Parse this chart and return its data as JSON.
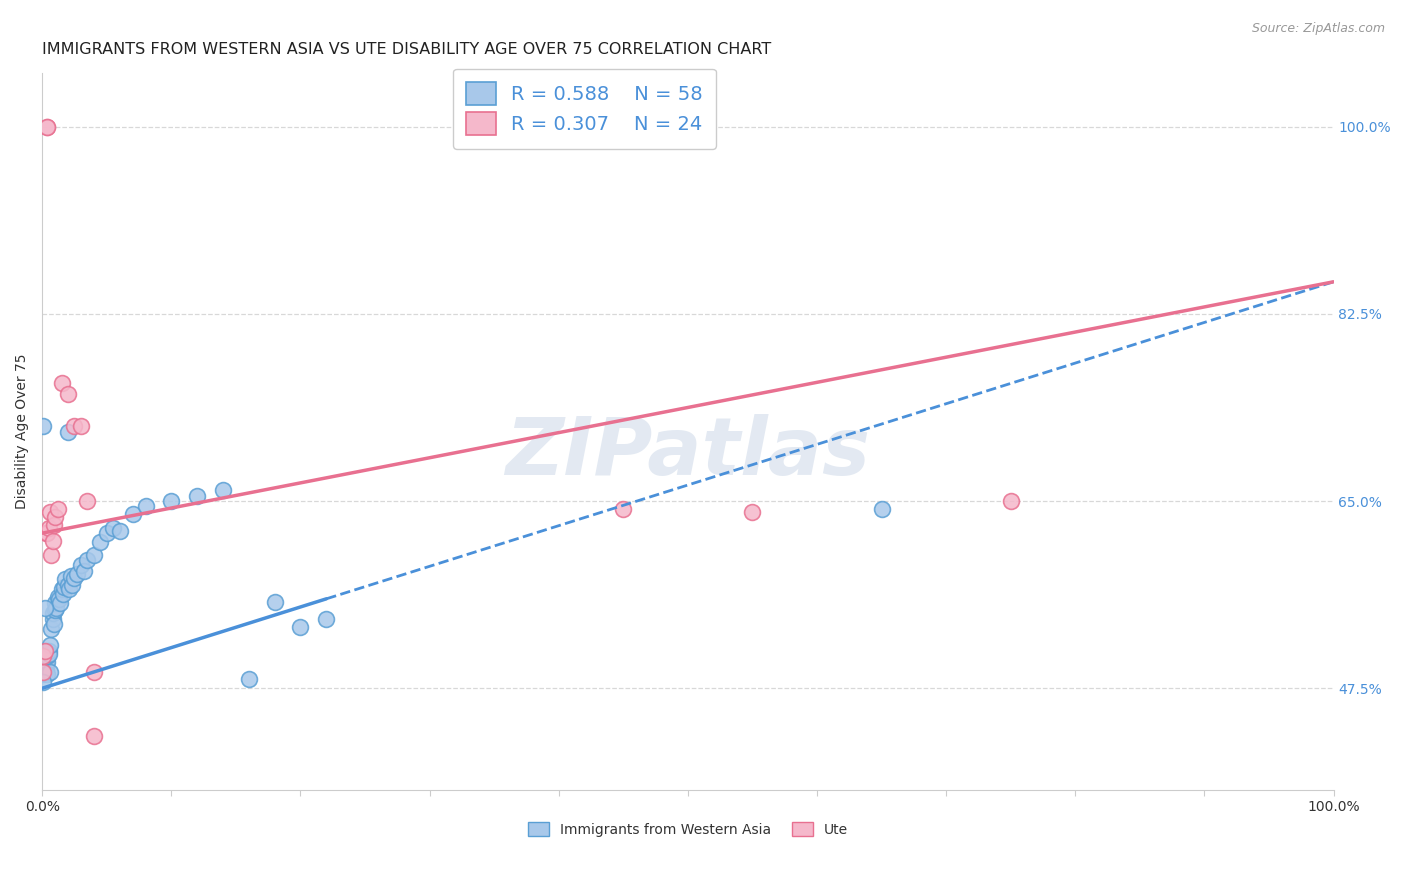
{
  "title": "IMMIGRANTS FROM WESTERN ASIA VS UTE DISABILITY AGE OVER 75 CORRELATION CHART",
  "source": "Source: ZipAtlas.com",
  "ylabel_left": "Disability Age Over 75",
  "xlabel_labels": [
    "Immigrants from Western Asia",
    "Ute"
  ],
  "watermark": "ZIPatlas",
  "blue_R": 0.588,
  "blue_N": 58,
  "pink_R": 0.307,
  "pink_N": 24,
  "blue_fill": "#a8c8ea",
  "pink_fill": "#f5b8cb",
  "blue_edge": "#5a9fd4",
  "pink_edge": "#e87090",
  "blue_line": "#4a90d9",
  "pink_line": "#e87090",
  "blue_scatter_x": [
    0.001,
    0.001,
    0.001,
    0.001,
    0.002,
    0.002,
    0.002,
    0.003,
    0.003,
    0.004,
    0.004,
    0.004,
    0.005,
    0.005,
    0.006,
    0.006,
    0.007,
    0.008,
    0.008,
    0.009,
    0.01,
    0.01,
    0.011,
    0.012,
    0.013,
    0.014,
    0.015,
    0.016,
    0.017,
    0.018,
    0.02,
    0.021,
    0.022,
    0.023,
    0.025,
    0.027,
    0.03,
    0.032,
    0.035,
    0.04,
    0.045,
    0.05,
    0.055,
    0.06,
    0.07,
    0.08,
    0.1,
    0.12,
    0.14,
    0.16,
    0.18,
    0.2,
    0.22,
    0.02,
    0.65,
    0.001,
    0.002,
    0.001
  ],
  "blue_scatter_y": [
    0.49,
    0.495,
    0.5,
    0.488,
    0.492,
    0.496,
    0.49,
    0.493,
    0.5,
    0.5,
    0.505,
    0.488,
    0.51,
    0.507,
    0.515,
    0.49,
    0.53,
    0.54,
    0.545,
    0.535,
    0.548,
    0.555,
    0.55,
    0.56,
    0.558,
    0.555,
    0.568,
    0.563,
    0.57,
    0.577,
    0.572,
    0.568,
    0.58,
    0.572,
    0.578,
    0.582,
    0.59,
    0.585,
    0.595,
    0.6,
    0.612,
    0.62,
    0.625,
    0.622,
    0.638,
    0.645,
    0.65,
    0.655,
    0.66,
    0.484,
    0.556,
    0.532,
    0.54,
    0.715,
    0.643,
    0.72,
    0.55,
    0.481
  ],
  "pink_scatter_x": [
    0.001,
    0.001,
    0.002,
    0.003,
    0.004,
    0.005,
    0.006,
    0.007,
    0.008,
    0.009,
    0.01,
    0.012,
    0.015,
    0.02,
    0.025,
    0.03,
    0.035,
    0.04,
    0.04,
    0.004,
    0.004,
    0.45,
    0.55,
    0.75
  ],
  "pink_scatter_y": [
    0.49,
    0.505,
    0.51,
    0.62,
    0.62,
    0.625,
    0.64,
    0.6,
    0.613,
    0.628,
    0.635,
    0.643,
    0.76,
    0.75,
    0.72,
    0.72,
    0.65,
    0.49,
    0.43,
    1.0,
    1.0,
    0.643,
    0.64,
    0.65
  ],
  "blue_line_x0": 0.0,
  "blue_line_y0": 0.475,
  "blue_line_x1": 0.22,
  "blue_line_y1": 0.6,
  "blue_line_xmax": 1.0,
  "blue_line_ymax": 0.855,
  "pink_line_x0": 0.0,
  "pink_line_y0": 0.62,
  "pink_line_xmax": 1.0,
  "pink_line_ymax": 0.855,
  "x_min": 0.0,
  "x_max": 1.0,
  "y_min": 0.38,
  "y_max": 1.05,
  "yticks": [
    0.475,
    0.65,
    0.825,
    1.0
  ],
  "ytick_labels": [
    "47.5%",
    "65.0%",
    "82.5%",
    "100.0%"
  ],
  "xtick_positions": [
    0.0,
    0.1,
    0.2,
    0.3,
    0.4,
    0.5,
    0.6,
    0.7,
    0.8,
    0.9,
    1.0
  ],
  "xtick_labels_shown": [
    "0.0%",
    "",
    "",
    "",
    "",
    "",
    "",
    "",
    "",
    "",
    "100.0%"
  ],
  "background_color": "#ffffff",
  "grid_color": "#d8d8d8",
  "title_fontsize": 11.5,
  "axis_label_fontsize": 10,
  "tick_fontsize": 10,
  "legend_fontsize": 14
}
